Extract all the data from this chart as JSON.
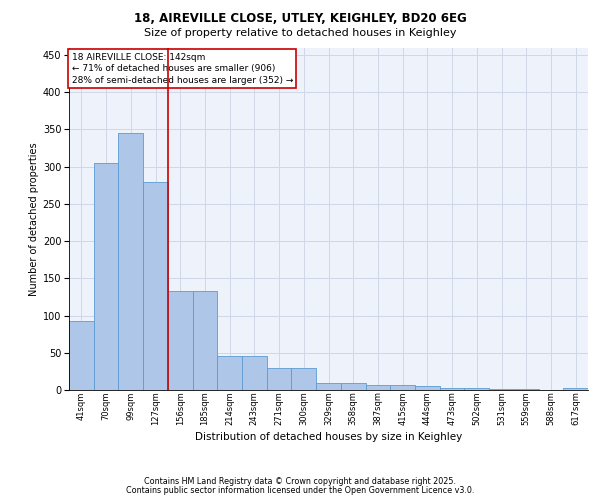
{
  "title_line1": "18, AIREVILLE CLOSE, UTLEY, KEIGHLEY, BD20 6EG",
  "title_line2": "Size of property relative to detached houses in Keighley",
  "xlabel": "Distribution of detached houses by size in Keighley",
  "ylabel": "Number of detached properties",
  "categories": [
    "41sqm",
    "70sqm",
    "99sqm",
    "127sqm",
    "156sqm",
    "185sqm",
    "214sqm",
    "243sqm",
    "271sqm",
    "300sqm",
    "329sqm",
    "358sqm",
    "387sqm",
    "415sqm",
    "444sqm",
    "473sqm",
    "502sqm",
    "531sqm",
    "559sqm",
    "588sqm",
    "617sqm"
  ],
  "values": [
    93,
    305,
    345,
    280,
    133,
    133,
    45,
    45,
    30,
    30,
    10,
    10,
    7,
    7,
    5,
    3,
    3,
    1,
    1,
    0,
    3
  ],
  "bar_color": "#aec6e8",
  "bar_edge_color": "#5b9bd5",
  "grid_color": "#d0d8e8",
  "background_color": "#eef2fa",
  "vline_x": 3.5,
  "vline_color": "#cc0000",
  "annotation_text": "18 AIREVILLE CLOSE: 142sqm\n← 71% of detached houses are smaller (906)\n28% of semi-detached houses are larger (352) →",
  "annotation_box_color": "#ffffff",
  "annotation_box_edge": "#cc0000",
  "footer_line1": "Contains HM Land Registry data © Crown copyright and database right 2025.",
  "footer_line2": "Contains public sector information licensed under the Open Government Licence v3.0.",
  "ylim": [
    0,
    460
  ],
  "yticks": [
    0,
    50,
    100,
    150,
    200,
    250,
    300,
    350,
    400,
    450
  ],
  "fig_width": 6.0,
  "fig_height": 5.0,
  "dpi": 100
}
